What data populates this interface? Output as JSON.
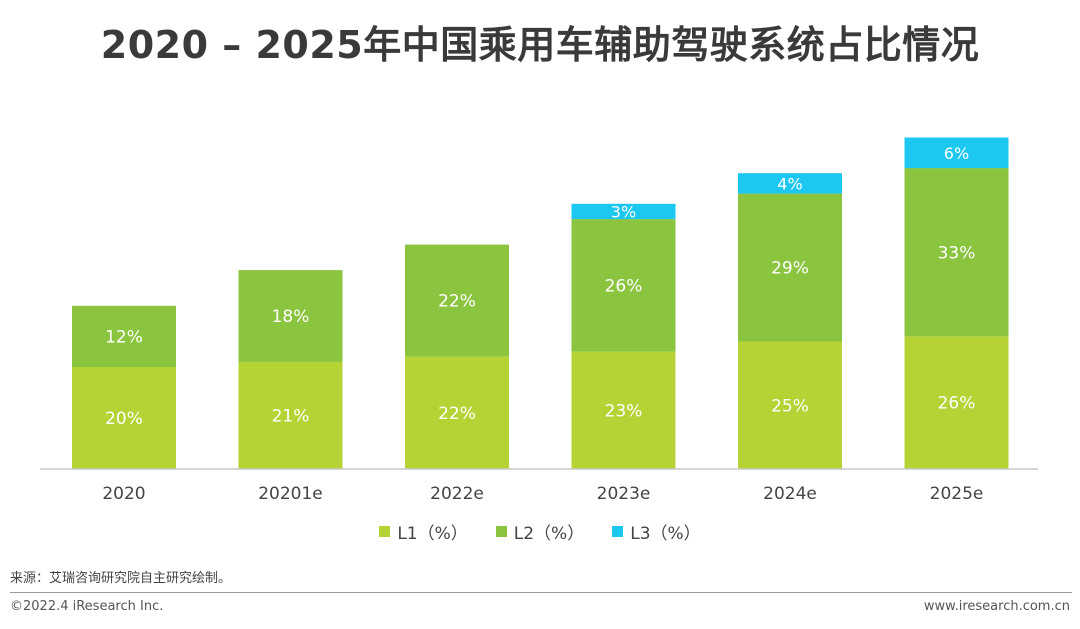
{
  "title": "2020 – 2025年中国乘用车辅助驾驶系统占比情况",
  "chart_data": {
    "type": "bar",
    "stacked": true,
    "title": "2020 – 2025年中国乘用车辅助驾驶系统占比情况",
    "categories": [
      "2020",
      "20201e",
      "2022e",
      "2023e",
      "2024e",
      "2025e"
    ],
    "series": [
      {
        "name": "L1（%）",
        "values": [
          20,
          21,
          22,
          23,
          25,
          26
        ],
        "labels": [
          "20%",
          "21%",
          "22%",
          "23%",
          "25%",
          "26%"
        ],
        "color": "#b5d334"
      },
      {
        "name": "L2（%）",
        "values": [
          12,
          18,
          22,
          26,
          29,
          33
        ],
        "labels": [
          "12%",
          "18%",
          "22%",
          "26%",
          "29%",
          "33%"
        ],
        "color": "#8bc43f"
      },
      {
        "name": "L3（%）",
        "values": [
          0,
          0,
          0,
          3,
          4,
          6
        ],
        "labels": [
          "",
          "",
          "",
          "3%",
          "4%",
          "6%"
        ],
        "color": "#1cc8f0"
      }
    ],
    "ylim": [
      0,
      70
    ],
    "xlabel": "",
    "ylabel": "",
    "grid": false,
    "legend": "bottom"
  },
  "legend": {
    "items": [
      {
        "label": "L1（%）",
        "color": "#b5d334"
      },
      {
        "label": "L2（%）",
        "color": "#8bc43f"
      },
      {
        "label": "L3（%）",
        "color": "#1cc8f0"
      }
    ]
  },
  "source": "来源：艾瑞咨询研究院自主研究绘制。",
  "footer": {
    "copyright": "©2022.4 iResearch Inc.",
    "site": "www.iresearch.com.cn"
  }
}
